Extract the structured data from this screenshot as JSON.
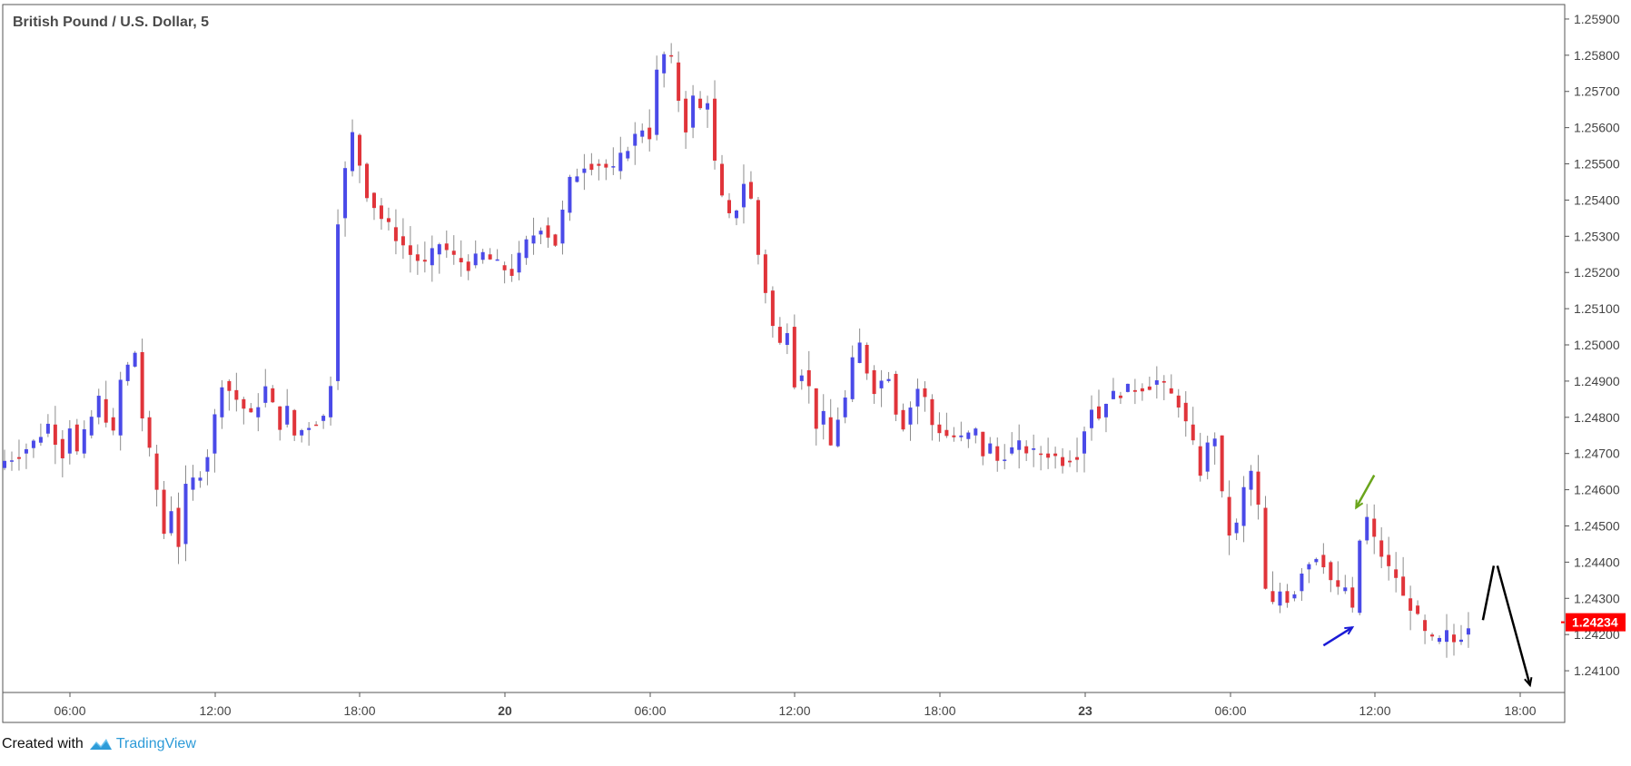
{
  "chart_data": {
    "type": "candlestick",
    "title": "British Pound / U.S. Dollar, 5",
    "ylim": [
      1.2404,
      1.2594
    ],
    "y_ticks": [
      "1.25900",
      "1.25800",
      "1.25700",
      "1.25600",
      "1.25500",
      "1.25400",
      "1.25300",
      "1.25200",
      "1.25100",
      "1.25000",
      "1.24900",
      "1.24800",
      "1.24700",
      "1.24600",
      "1.24500",
      "1.24400",
      "1.24300",
      "1.24200",
      "1.24100"
    ],
    "x_ticks": [
      "06:00",
      "12:00",
      "18:00",
      "20",
      "06:00",
      "12:00",
      "18:00",
      "23",
      "06:00",
      "12:00",
      "18:00"
    ],
    "last_price": "1.24234",
    "price_path": [
      [
        0,
        1.2468
      ],
      [
        2,
        1.247
      ],
      [
        4,
        1.2473
      ],
      [
        6,
        1.2478
      ],
      [
        8,
        1.247
      ],
      [
        9,
        1.2478
      ],
      [
        10,
        1.247
      ],
      [
        11,
        1.2475
      ],
      [
        13,
        1.2485
      ],
      [
        15,
        1.2475
      ],
      [
        16,
        1.249
      ],
      [
        18,
        1.2498
      ],
      [
        19,
        1.248
      ],
      [
        20,
        1.247
      ],
      [
        21,
        1.246
      ],
      [
        22,
        1.2448
      ],
      [
        23,
        1.2455
      ],
      [
        24,
        1.2445
      ],
      [
        25,
        1.246
      ],
      [
        27,
        1.2465
      ],
      [
        28,
        1.247
      ],
      [
        30,
        1.249
      ],
      [
        32,
        1.2485
      ],
      [
        34,
        1.248
      ],
      [
        36,
        1.2488
      ],
      [
        38,
        1.2478
      ],
      [
        39,
        1.2482
      ],
      [
        40,
        1.2475
      ],
      [
        42,
        1.2478
      ],
      [
        44,
        1.248
      ],
      [
        45,
        1.249
      ],
      [
        46,
        1.2535
      ],
      [
        47,
        1.2548
      ],
      [
        48,
        1.2558
      ],
      [
        49,
        1.255
      ],
      [
        50,
        1.2542
      ],
      [
        52,
        1.2535
      ],
      [
        54,
        1.253
      ],
      [
        56,
        1.2525
      ],
      [
        58,
        1.2522
      ],
      [
        60,
        1.2528
      ],
      [
        62,
        1.2524
      ],
      [
        64,
        1.2522
      ],
      [
        66,
        1.2525
      ],
      [
        68,
        1.2522
      ],
      [
        70,
        1.252
      ],
      [
        72,
        1.2528
      ],
      [
        74,
        1.2533
      ],
      [
        76,
        1.2528
      ],
      [
        78,
        1.2545
      ],
      [
        80,
        1.255
      ],
      [
        82,
        1.255
      ],
      [
        84,
        1.2548
      ],
      [
        86,
        1.2555
      ],
      [
        88,
        1.256
      ],
      [
        89,
        1.2558
      ],
      [
        90,
        1.2575
      ],
      [
        91,
        1.258
      ],
      [
        92,
        1.2578
      ],
      [
        93,
        1.2568
      ],
      [
        94,
        1.256
      ],
      [
        95,
        1.2568
      ],
      [
        96,
        1.2565
      ],
      [
        97,
        1.2568
      ],
      [
        98,
        1.255
      ],
      [
        99,
        1.254
      ],
      [
        100,
        1.2535
      ],
      [
        101,
        1.2538
      ],
      [
        102,
        1.2545
      ],
      [
        103,
        1.254
      ],
      [
        104,
        1.2525
      ],
      [
        105,
        1.2515
      ],
      [
        106,
        1.2505
      ],
      [
        107,
        1.25
      ],
      [
        108,
        1.2505
      ],
      [
        109,
        1.249
      ],
      [
        110,
        1.2493
      ],
      [
        111,
        1.2488
      ],
      [
        112,
        1.2478
      ],
      [
        113,
        1.248
      ],
      [
        114,
        1.2472
      ],
      [
        115,
        1.248
      ],
      [
        116,
        1.2485
      ],
      [
        117,
        1.2495
      ],
      [
        118,
        1.25
      ],
      [
        119,
        1.2493
      ],
      [
        120,
        1.2488
      ],
      [
        121,
        1.249
      ],
      [
        122,
        1.2492
      ],
      [
        123,
        1.2482
      ],
      [
        124,
        1.2478
      ],
      [
        126,
        1.2488
      ],
      [
        127,
        1.2485
      ],
      [
        128,
        1.2478
      ],
      [
        130,
        1.2475
      ],
      [
        132,
        1.2474
      ],
      [
        134,
        1.2476
      ],
      [
        135,
        1.247
      ],
      [
        136,
        1.2472
      ],
      [
        137,
        1.2468
      ],
      [
        138,
        1.247
      ],
      [
        140,
        1.2472
      ],
      [
        142,
        1.247
      ],
      [
        144,
        1.247
      ],
      [
        146,
        1.2468
      ],
      [
        148,
        1.247
      ],
      [
        149,
        1.2477
      ],
      [
        150,
        1.2483
      ],
      [
        151,
        1.248
      ],
      [
        152,
        1.2485
      ],
      [
        154,
        1.2487
      ],
      [
        156,
        1.2488
      ],
      [
        158,
        1.2489
      ],
      [
        159,
        1.249
      ],
      [
        160,
        1.2488
      ],
      [
        162,
        1.2484
      ],
      [
        163,
        1.2478
      ],
      [
        164,
        1.2472
      ],
      [
        165,
        1.2465
      ],
      [
        166,
        1.2472
      ],
      [
        167,
        1.2475
      ],
      [
        168,
        1.2458
      ],
      [
        169,
        1.2448
      ],
      [
        170,
        1.245
      ],
      [
        171,
        1.246
      ],
      [
        172,
        1.2465
      ],
      [
        173,
        1.2455
      ],
      [
        174,
        1.2432
      ],
      [
        175,
        1.2428
      ],
      [
        176,
        1.2432
      ],
      [
        177,
        1.243
      ],
      [
        178,
        1.2432
      ],
      [
        179,
        1.2438
      ],
      [
        180,
        1.244
      ],
      [
        181,
        1.2442
      ],
      [
        182,
        1.244
      ],
      [
        183,
        1.2435
      ],
      [
        184,
        1.2432
      ],
      [
        185,
        1.2433
      ],
      [
        186,
        1.2426
      ],
      [
        187,
        1.2446
      ],
      [
        188,
        1.2452
      ],
      [
        189,
        1.2446
      ],
      [
        190,
        1.2442
      ],
      [
        191,
        1.2438
      ],
      [
        192,
        1.2436
      ],
      [
        193,
        1.243
      ],
      [
        194,
        1.2428
      ],
      [
        195,
        1.2424
      ],
      [
        196,
        1.242
      ],
      [
        197,
        1.2418
      ],
      [
        198,
        1.2418
      ],
      [
        199,
        1.242
      ],
      [
        200,
        1.2418
      ],
      [
        201,
        1.242
      ],
      [
        202,
        1.2423
      ]
    ],
    "annotations": [
      {
        "type": "arrow",
        "color": "#1a1ad6",
        "from": [
          182,
          1.2417
        ],
        "to": [
          186,
          1.2422
        ]
      },
      {
        "type": "arrow",
        "color": "#6aa51c",
        "from": [
          189,
          1.2464
        ],
        "to": [
          186.5,
          1.2455
        ]
      },
      {
        "type": "line",
        "color": "#000000",
        "from": [
          204,
          1.2424
        ],
        "to": [
          205.5,
          1.2439
        ]
      },
      {
        "type": "arrow",
        "color": "#000000",
        "from": [
          206,
          1.2439
        ],
        "to": [
          210.5,
          1.2406
        ]
      }
    ]
  },
  "footer": {
    "created_with": "Created with",
    "brand": "TradingView"
  },
  "colors": {
    "up": "#4a4ae8",
    "down": "#e0343a",
    "wick": "#8c8c8c",
    "axis": "#555555",
    "price_tag": "#ff0000",
    "brand": "#2d9bd8"
  }
}
